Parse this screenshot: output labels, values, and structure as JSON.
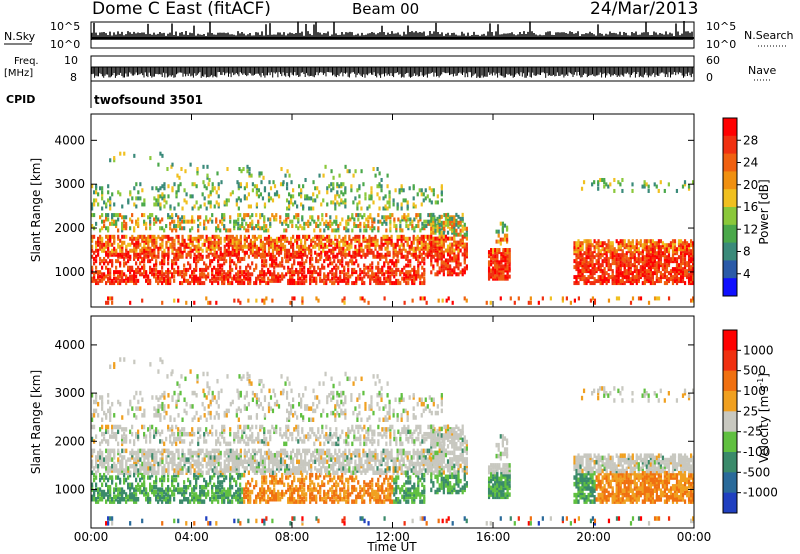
{
  "header": {
    "station": "Dome C East (fitACF)",
    "beam": "Beam 00",
    "date": "24/Mar/2013"
  },
  "sky_panel": {
    "label": "N.Sky",
    "right_label": "N.Search",
    "y_ticks_left": [
      "10^5",
      "10^0"
    ],
    "y_ticks_right": [
      "10^5",
      "10^0"
    ]
  },
  "freq_panel": {
    "label_line1": "Freq.",
    "label_line2": "[MHz]",
    "y_ticks_left": [
      "10",
      "8"
    ],
    "y_ticks_right": [
      "60",
      "0"
    ],
    "right_label": "Nave"
  },
  "cpid_panel": {
    "label": "CPID",
    "value": "twofsound 3501"
  },
  "x_axis": {
    "ticks": [
      "00:00",
      "04:00",
      "08:00",
      "12:00",
      "16:00",
      "20:00",
      "00:00"
    ],
    "label": "Time UT"
  },
  "colors": {
    "power_scale": [
      "#1010ff",
      "#2a5aa8",
      "#3a8a7a",
      "#4aa84a",
      "#8ac83a",
      "#f0c020",
      "#f09010",
      "#f06010",
      "#f03010",
      "#ff0000"
    ],
    "velocity_scale": [
      "#2040c0",
      "#2a6a9a",
      "#3a8a6a",
      "#60c040",
      "#c8c8c0",
      "#f0a020",
      "#f07010",
      "#f03010",
      "#ff0000"
    ]
  },
  "chart_data": [
    {
      "type": "heatmap",
      "panel": "power",
      "ylabel": "Slant Range [km]",
      "y_ticks": [
        "4000",
        "3000",
        "2000",
        "1000"
      ],
      "ylim": [
        200,
        4600
      ],
      "xlim_hours": [
        0,
        24
      ],
      "colorbar_label": "Power [dB]",
      "colorbar_ticks": [
        "28",
        "24",
        "20",
        "16",
        "12",
        "8",
        "4"
      ],
      "colorbar_range": [
        0,
        32
      ]
    },
    {
      "type": "heatmap",
      "panel": "velocity",
      "ylabel": "Slant Range [km]",
      "y_ticks": [
        "4000",
        "3000",
        "2000",
        "1000"
      ],
      "ylim": [
        200,
        4600
      ],
      "xlim_hours": [
        0,
        24
      ],
      "colorbar_label": "Velocity [m s^-1]",
      "colorbar_ticks": [
        "1000",
        "500",
        "100",
        "25",
        "-25",
        "-100",
        "-500",
        "-1000"
      ]
    }
  ]
}
